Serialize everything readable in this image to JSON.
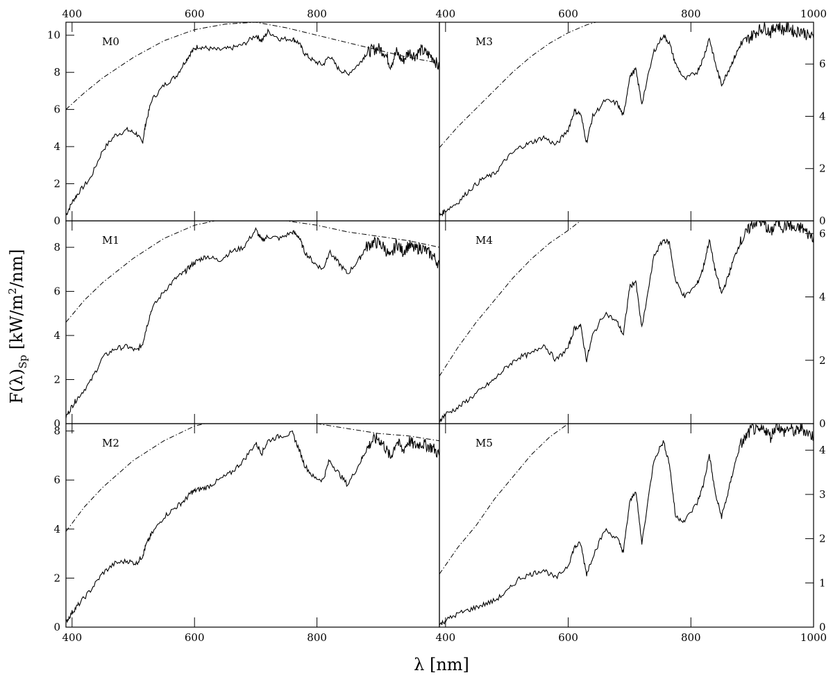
{
  "figure": {
    "xlabel": "λ [nm]",
    "ylabel": "F(λ)",
    "ylabel_sub": "Sp",
    "ylabel_units": " [kW/m",
    "ylabel_sup": "2",
    "ylabel_tail": "/nm]"
  },
  "chart_data": [
    {
      "type": "line",
      "label": "M0",
      "column": "left",
      "row": 0,
      "xlim": [
        390,
        1000
      ],
      "ylim": [
        0,
        10.7
      ],
      "x_ticks": [
        400,
        600,
        800
      ],
      "y_ticks": [
        0,
        2,
        4,
        6,
        8,
        10
      ],
      "y_axis_side": "left",
      "series": [
        {
          "style": "solid",
          "x": [
            390,
            400,
            410,
            430,
            450,
            470,
            490,
            505,
            515,
            520,
            530,
            550,
            570,
            585,
            595,
            605,
            620,
            640,
            660,
            680,
            700,
            710,
            720,
            740,
            760,
            770,
            780,
            795,
            810,
            820,
            835,
            850,
            870,
            880,
            890,
            900,
            910,
            920,
            930,
            940,
            950,
            960,
            970,
            980,
            990,
            1000
          ],
          "y": [
            0.3,
            1.0,
            1.5,
            2.3,
            3.8,
            4.6,
            4.9,
            4.7,
            4.2,
            5.2,
            6.5,
            7.3,
            7.8,
            8.6,
            9.1,
            9.4,
            9.3,
            9.2,
            9.3,
            9.5,
            10.0,
            9.7,
            10.2,
            9.8,
            9.8,
            9.6,
            9.0,
            8.6,
            8.4,
            8.9,
            8.2,
            7.9,
            8.5,
            9.0,
            9.2,
            9.3,
            9.1,
            8.4,
            9.1,
            8.6,
            9.1,
            8.9,
            9.2,
            9.0,
            8.8,
            8.2
          ]
        },
        {
          "style": "dashdot",
          "x": [
            390,
            420,
            450,
            500,
            550,
            600,
            650,
            700,
            750,
            800,
            850,
            900,
            950,
            1000
          ],
          "y": [
            6.0,
            6.9,
            7.7,
            8.8,
            9.7,
            10.3,
            10.6,
            10.7,
            10.4,
            10.0,
            9.6,
            9.2,
            8.8,
            8.5
          ]
        }
      ]
    },
    {
      "type": "line",
      "label": "M1",
      "column": "left",
      "row": 1,
      "xlim": [
        390,
        1000
      ],
      "ylim": [
        0,
        9.2
      ],
      "x_ticks": [
        400,
        600,
        800
      ],
      "y_ticks": [
        0,
        2,
        4,
        6,
        8
      ],
      "y_axis_side": "left",
      "series": [
        {
          "style": "solid",
          "x": [
            390,
            400,
            410,
            430,
            450,
            470,
            490,
            505,
            515,
            520,
            530,
            550,
            570,
            585,
            595,
            605,
            620,
            640,
            660,
            680,
            700,
            710,
            720,
            740,
            760,
            770,
            780,
            795,
            810,
            820,
            835,
            850,
            870,
            880,
            890,
            900,
            910,
            920,
            930,
            940,
            950,
            960,
            970,
            980,
            990,
            1000
          ],
          "y": [
            0.3,
            0.8,
            1.2,
            1.9,
            3.0,
            3.4,
            3.5,
            3.3,
            3.6,
            4.2,
            5.2,
            6.0,
            6.6,
            6.9,
            7.2,
            7.4,
            7.6,
            7.4,
            7.8,
            8.0,
            8.8,
            8.3,
            8.5,
            8.4,
            8.7,
            8.5,
            7.8,
            7.3,
            7.0,
            7.8,
            7.3,
            6.8,
            7.5,
            8.0,
            8.2,
            8.2,
            8.0,
            7.5,
            8.2,
            7.8,
            8.1,
            7.9,
            8.0,
            7.8,
            7.6,
            7.2
          ]
        },
        {
          "style": "dashdot",
          "x": [
            390,
            420,
            450,
            500,
            550,
            600,
            650,
            700,
            750,
            800,
            850,
            900,
            950,
            1000
          ],
          "y": [
            4.6,
            5.6,
            6.4,
            7.5,
            8.4,
            9.0,
            9.3,
            9.3,
            9.2,
            9.0,
            8.7,
            8.5,
            8.3,
            8.0
          ]
        }
      ]
    },
    {
      "type": "line",
      "label": "M2",
      "column": "left",
      "row": 2,
      "xlim": [
        390,
        1000
      ],
      "ylim": [
        0,
        8.3
      ],
      "x_ticks": [
        400,
        600,
        800
      ],
      "y_ticks": [
        0,
        2,
        4,
        6,
        8
      ],
      "y_axis_side": "left",
      "series": [
        {
          "style": "solid",
          "x": [
            390,
            400,
            410,
            430,
            450,
            470,
            490,
            505,
            515,
            520,
            530,
            550,
            570,
            585,
            595,
            605,
            620,
            640,
            660,
            680,
            700,
            710,
            720,
            740,
            760,
            770,
            780,
            795,
            810,
            820,
            835,
            850,
            870,
            880,
            890,
            900,
            910,
            920,
            930,
            940,
            950,
            960,
            970,
            980,
            990,
            1000
          ],
          "y": [
            0.2,
            0.6,
            0.9,
            1.5,
            2.2,
            2.6,
            2.7,
            2.6,
            2.9,
            3.3,
            3.8,
            4.5,
            4.9,
            5.2,
            5.5,
            5.6,
            5.7,
            6.0,
            6.3,
            6.8,
            7.5,
            7.1,
            7.6,
            7.8,
            7.9,
            7.3,
            6.6,
            6.1,
            6.0,
            6.8,
            6.3,
            5.8,
            6.7,
            7.2,
            7.6,
            7.7,
            7.4,
            6.9,
            7.6,
            7.2,
            7.6,
            7.4,
            7.5,
            7.4,
            7.3,
            7.0
          ]
        },
        {
          "style": "dashdot",
          "x": [
            390,
            420,
            450,
            500,
            550,
            600,
            650,
            700,
            750,
            800,
            850,
            900,
            950,
            1000
          ],
          "y": [
            3.9,
            4.9,
            5.7,
            6.8,
            7.6,
            8.2,
            8.5,
            8.6,
            8.5,
            8.3,
            8.1,
            7.9,
            7.8,
            7.6
          ]
        }
      ]
    },
    {
      "type": "line",
      "label": "M3",
      "column": "right",
      "row": 0,
      "xlim": [
        390,
        1000
      ],
      "ylim": [
        0,
        7.6
      ],
      "x_ticks": [
        400,
        600,
        800,
        1000
      ],
      "y_ticks": [
        0,
        2,
        4,
        6
      ],
      "y_axis_side": "right",
      "series": [
        {
          "style": "solid",
          "x": [
            390,
            400,
            420,
            440,
            460,
            480,
            500,
            520,
            540,
            560,
            580,
            600,
            610,
            620,
            630,
            640,
            660,
            680,
            690,
            700,
            710,
            720,
            740,
            755,
            765,
            775,
            790,
            810,
            820,
            830,
            840,
            850,
            860,
            870,
            880,
            890,
            900,
            910,
            920,
            930,
            940,
            950,
            960,
            970,
            980,
            990,
            1000
          ],
          "y": [
            0.2,
            0.4,
            0.7,
            1.2,
            1.6,
            1.8,
            2.4,
            2.8,
            3.0,
            3.2,
            2.9,
            3.5,
            4.2,
            4.1,
            3.0,
            4.0,
            4.6,
            4.5,
            4.0,
            5.5,
            5.8,
            4.5,
            6.5,
            7.1,
            6.8,
            6.0,
            5.4,
            5.7,
            6.2,
            7.0,
            6.0,
            5.2,
            5.7,
            6.2,
            6.7,
            6.9,
            7.1,
            7.3,
            7.4,
            7.2,
            7.5,
            7.3,
            7.4,
            7.2,
            7.3,
            7.1,
            7.0
          ]
        },
        {
          "style": "dashdot",
          "x": [
            390,
            420,
            450,
            480,
            510,
            540,
            570,
            600,
            630,
            660
          ],
          "y": [
            2.8,
            3.6,
            4.3,
            5.0,
            5.7,
            6.3,
            6.8,
            7.2,
            7.5,
            7.7
          ]
        }
      ]
    },
    {
      "type": "line",
      "label": "M4",
      "column": "right",
      "row": 1,
      "xlim": [
        390,
        1000
      ],
      "ylim": [
        0,
        6.4
      ],
      "x_ticks": [
        400,
        600,
        800,
        1000
      ],
      "y_ticks": [
        0,
        2,
        4,
        6
      ],
      "y_axis_side": "right",
      "series": [
        {
          "style": "solid",
          "x": [
            390,
            400,
            420,
            440,
            460,
            480,
            500,
            520,
            540,
            560,
            580,
            600,
            610,
            620,
            630,
            640,
            660,
            680,
            690,
            700,
            710,
            720,
            740,
            755,
            765,
            775,
            790,
            810,
            820,
            830,
            840,
            850,
            860,
            870,
            880,
            890,
            900,
            910,
            920,
            930,
            940,
            950,
            960,
            970,
            980,
            990,
            1000
          ],
          "y": [
            0.1,
            0.3,
            0.5,
            0.8,
            1.1,
            1.4,
            1.8,
            2.1,
            2.2,
            2.5,
            2.0,
            2.4,
            3.0,
            3.1,
            2.0,
            2.8,
            3.5,
            3.2,
            2.8,
            4.3,
            4.5,
            3.0,
            5.3,
            5.8,
            5.7,
            4.5,
            4.0,
            4.4,
            4.9,
            5.8,
            4.8,
            4.1,
            4.6,
            5.2,
            5.7,
            6.0,
            6.3,
            6.4,
            6.3,
            6.0,
            6.4,
            6.2,
            6.3,
            6.1,
            6.2,
            6.0,
            5.9
          ]
        },
        {
          "style": "dashdot",
          "x": [
            390,
            420,
            450,
            480,
            510,
            540,
            570,
            600,
            620
          ],
          "y": [
            1.5,
            2.4,
            3.2,
            3.9,
            4.6,
            5.2,
            5.7,
            6.1,
            6.4
          ]
        }
      ]
    },
    {
      "type": "line",
      "label": "M5",
      "column": "right",
      "row": 2,
      "xlim": [
        390,
        1000
      ],
      "ylim": [
        0,
        4.6
      ],
      "x_ticks": [
        400,
        600,
        800,
        1000
      ],
      "y_ticks": [
        0,
        1,
        2,
        3,
        4
      ],
      "y_axis_side": "right",
      "series": [
        {
          "style": "solid",
          "x": [
            390,
            400,
            420,
            440,
            460,
            480,
            500,
            520,
            540,
            560,
            580,
            600,
            610,
            620,
            630,
            640,
            660,
            680,
            690,
            700,
            710,
            720,
            740,
            755,
            765,
            775,
            790,
            810,
            820,
            830,
            840,
            850,
            860,
            870,
            880,
            890,
            900,
            910,
            920,
            930,
            940,
            950,
            960,
            970,
            980,
            990,
            1000
          ],
          "y": [
            0.05,
            0.15,
            0.3,
            0.4,
            0.5,
            0.6,
            0.8,
            1.1,
            1.2,
            1.3,
            1.1,
            1.4,
            1.8,
            1.9,
            1.2,
            1.6,
            2.2,
            2.0,
            1.7,
            2.8,
            3.1,
            1.9,
            3.8,
            4.2,
            3.7,
            2.5,
            2.4,
            2.8,
            3.2,
            3.9,
            3.0,
            2.5,
            3.0,
            3.6,
            4.1,
            4.3,
            4.5,
            4.4,
            4.5,
            4.3,
            4.6,
            4.4,
            4.5,
            4.4,
            4.5,
            4.4,
            4.3
          ]
        },
        {
          "style": "dashdot",
          "x": [
            390,
            420,
            450,
            480,
            510,
            540,
            570,
            600
          ],
          "y": [
            1.2,
            1.8,
            2.3,
            2.9,
            3.4,
            3.9,
            4.3,
            4.6
          ]
        }
      ]
    }
  ],
  "top_axis_labels": {
    "left": [
      "400",
      "600",
      "800"
    ],
    "right": [
      "400",
      "600",
      "800",
      "1000"
    ]
  }
}
